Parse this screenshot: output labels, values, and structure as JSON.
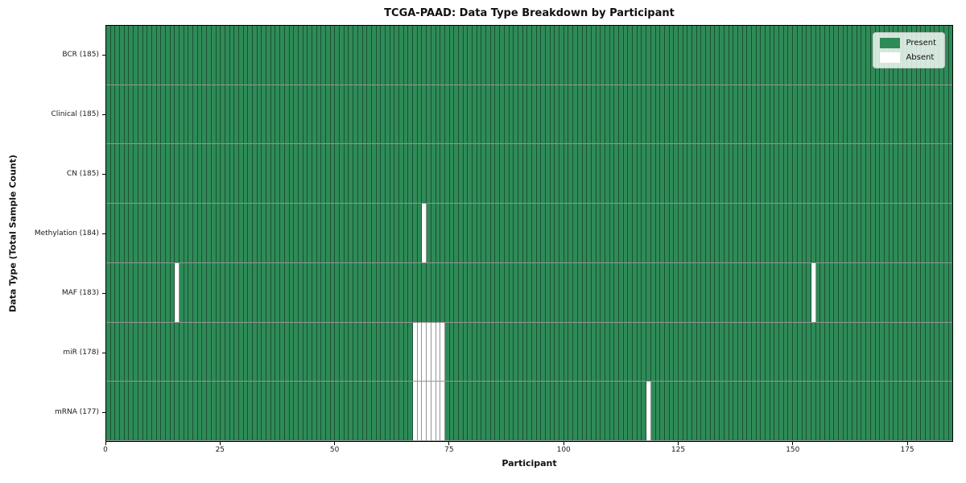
{
  "chart_data": {
    "type": "heatmap",
    "title": "TCGA-PAAD: Data Type Breakdown by Participant",
    "xlabel": "Participant",
    "ylabel": "Data Type (Total Sample Count)",
    "n_participants": 185,
    "x_ticks": [
      0,
      25,
      50,
      75,
      100,
      125,
      150,
      175
    ],
    "rows": [
      {
        "data_type": "BCR",
        "label": "BCR (185)",
        "total": 185,
        "absent_participants": []
      },
      {
        "data_type": "Clinical",
        "label": "Clinical (185)",
        "total": 185,
        "absent_participants": []
      },
      {
        "data_type": "CN",
        "label": "CN (185)",
        "total": 185,
        "absent_participants": []
      },
      {
        "data_type": "Methylation",
        "label": "Methylation (184)",
        "total": 184,
        "absent_participants": [
          69
        ]
      },
      {
        "data_type": "MAF",
        "label": "MAF (183)",
        "total": 183,
        "absent_participants": [
          15,
          154
        ]
      },
      {
        "data_type": "miR",
        "label": "miR (178)",
        "total": 178,
        "absent_participants": [
          67,
          68,
          69,
          70,
          71,
          72,
          73
        ]
      },
      {
        "data_type": "mRNA",
        "label": "mRNA (177)",
        "total": 177,
        "absent_participants": [
          67,
          68,
          69,
          70,
          71,
          72,
          73,
          118
        ]
      }
    ],
    "legend": [
      {
        "label": "Present",
        "color": "#2e8b57"
      },
      {
        "label": "Absent",
        "color": "#ffffff"
      }
    ],
    "colors": {
      "present": "#2e8b57",
      "absent": "#ffffff",
      "cell_edge": "rgba(0,0,0,0.42)"
    },
    "layout": {
      "legend_position": "upper right",
      "grid": "cell-borders"
    }
  }
}
